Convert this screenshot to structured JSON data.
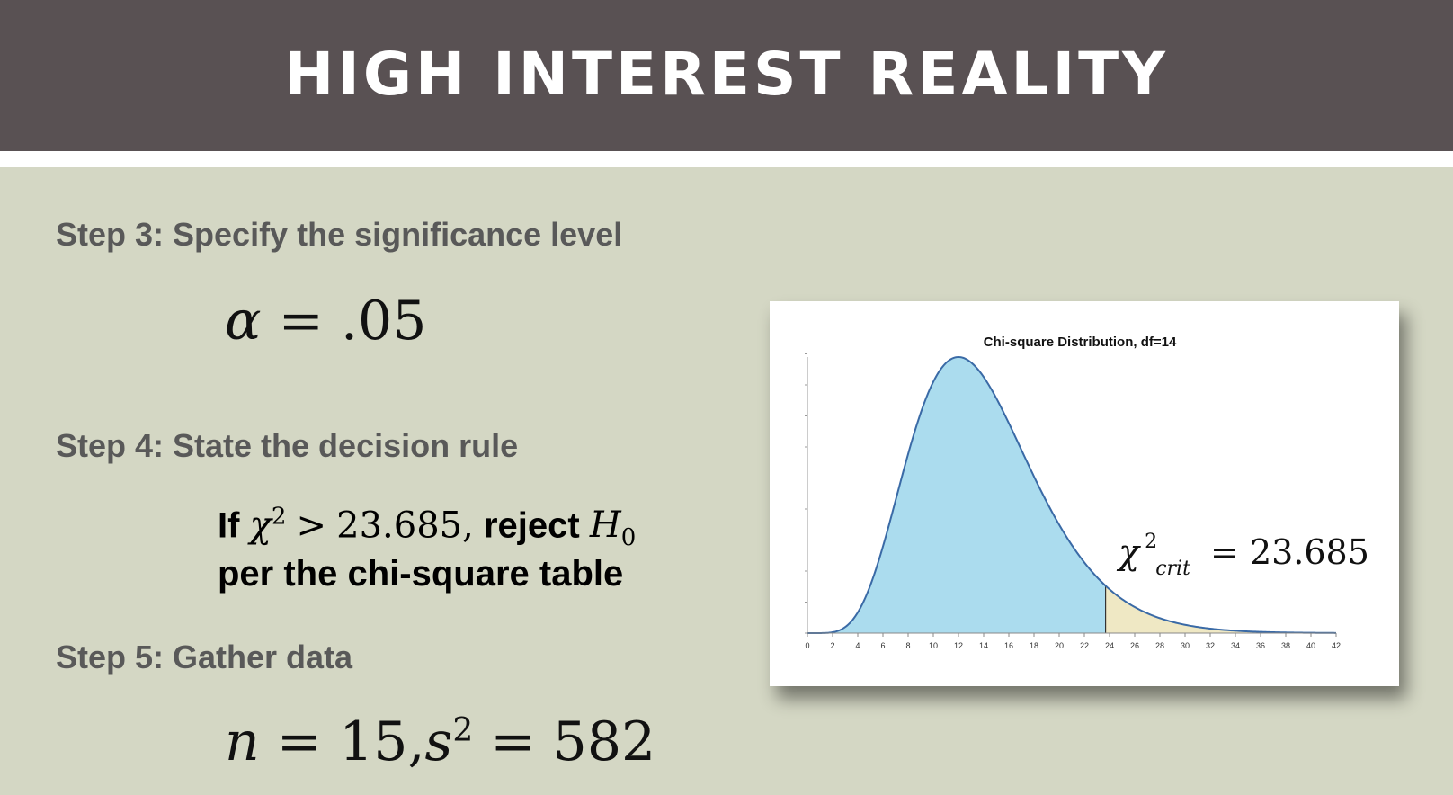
{
  "header": {
    "title": "HIGH INTEREST REALITY"
  },
  "steps": [
    {
      "label": "Step 3: Specify the significance level"
    },
    {
      "label": "Step 4: State the decision rule"
    },
    {
      "label": "Step 5: Gather data"
    }
  ],
  "alpha": {
    "symbol": "α",
    "equals": "=",
    "value": ".05"
  },
  "decision": {
    "prefix": "If",
    "chi": "χ",
    "sup": "2",
    "op": ">",
    "value": "23.685,",
    "action": "reject",
    "h": "H",
    "sub": "0",
    "line2": "per the chi-square table"
  },
  "gather": {
    "n": "n",
    "eq1": "=",
    "n_value": "15,",
    "s": "s",
    "sup": "2",
    "eq2": "=",
    "s_value": "582"
  },
  "chart_data": {
    "type": "area",
    "title": "Chi-square Distribution, df=14",
    "df": 14,
    "critical_value": 23.685,
    "annotation": {
      "chi": "χ",
      "sup": "2",
      "sub": "crit",
      "text": "= 23.685"
    },
    "xlim": [
      0,
      42
    ],
    "x_ticks": [
      "0",
      "2",
      "4",
      "6",
      "8",
      "10",
      "12",
      "14",
      "16",
      "18",
      "20",
      "22",
      "24",
      "26",
      "28",
      "30",
      "32",
      "34",
      "36",
      "38",
      "40",
      "42"
    ],
    "fill_colors": {
      "body": "#abdcee",
      "tail": "#efe8c4",
      "line": "#3a6aa6"
    },
    "grid": false
  }
}
